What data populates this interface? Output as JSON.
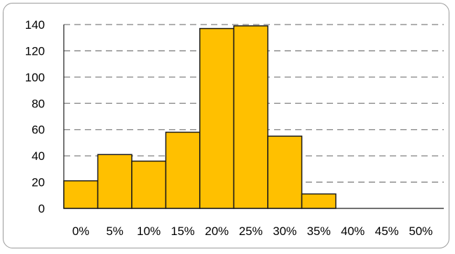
{
  "chart_data": {
    "type": "bar",
    "categories": [
      "0%",
      "5%",
      "10%",
      "15%",
      "20%",
      "25%",
      "30%",
      "35%",
      "40%",
      "45%",
      "50%"
    ],
    "values": [
      21,
      41,
      36,
      58,
      137,
      139,
      55,
      11,
      0,
      0,
      0
    ],
    "title": "",
    "xlabel": "",
    "ylabel": "",
    "ylim": [
      0,
      140
    ],
    "yticks": [
      "0",
      "20",
      "40",
      "60",
      "80",
      "100",
      "120",
      "140"
    ],
    "grid": "horizontal-dashed",
    "legend": "none",
    "colors": {
      "bar_fill": "#FFC000",
      "bar_stroke": "#1a1a1a",
      "grid": "#808080",
      "frame": "#9a9a9a"
    }
  }
}
